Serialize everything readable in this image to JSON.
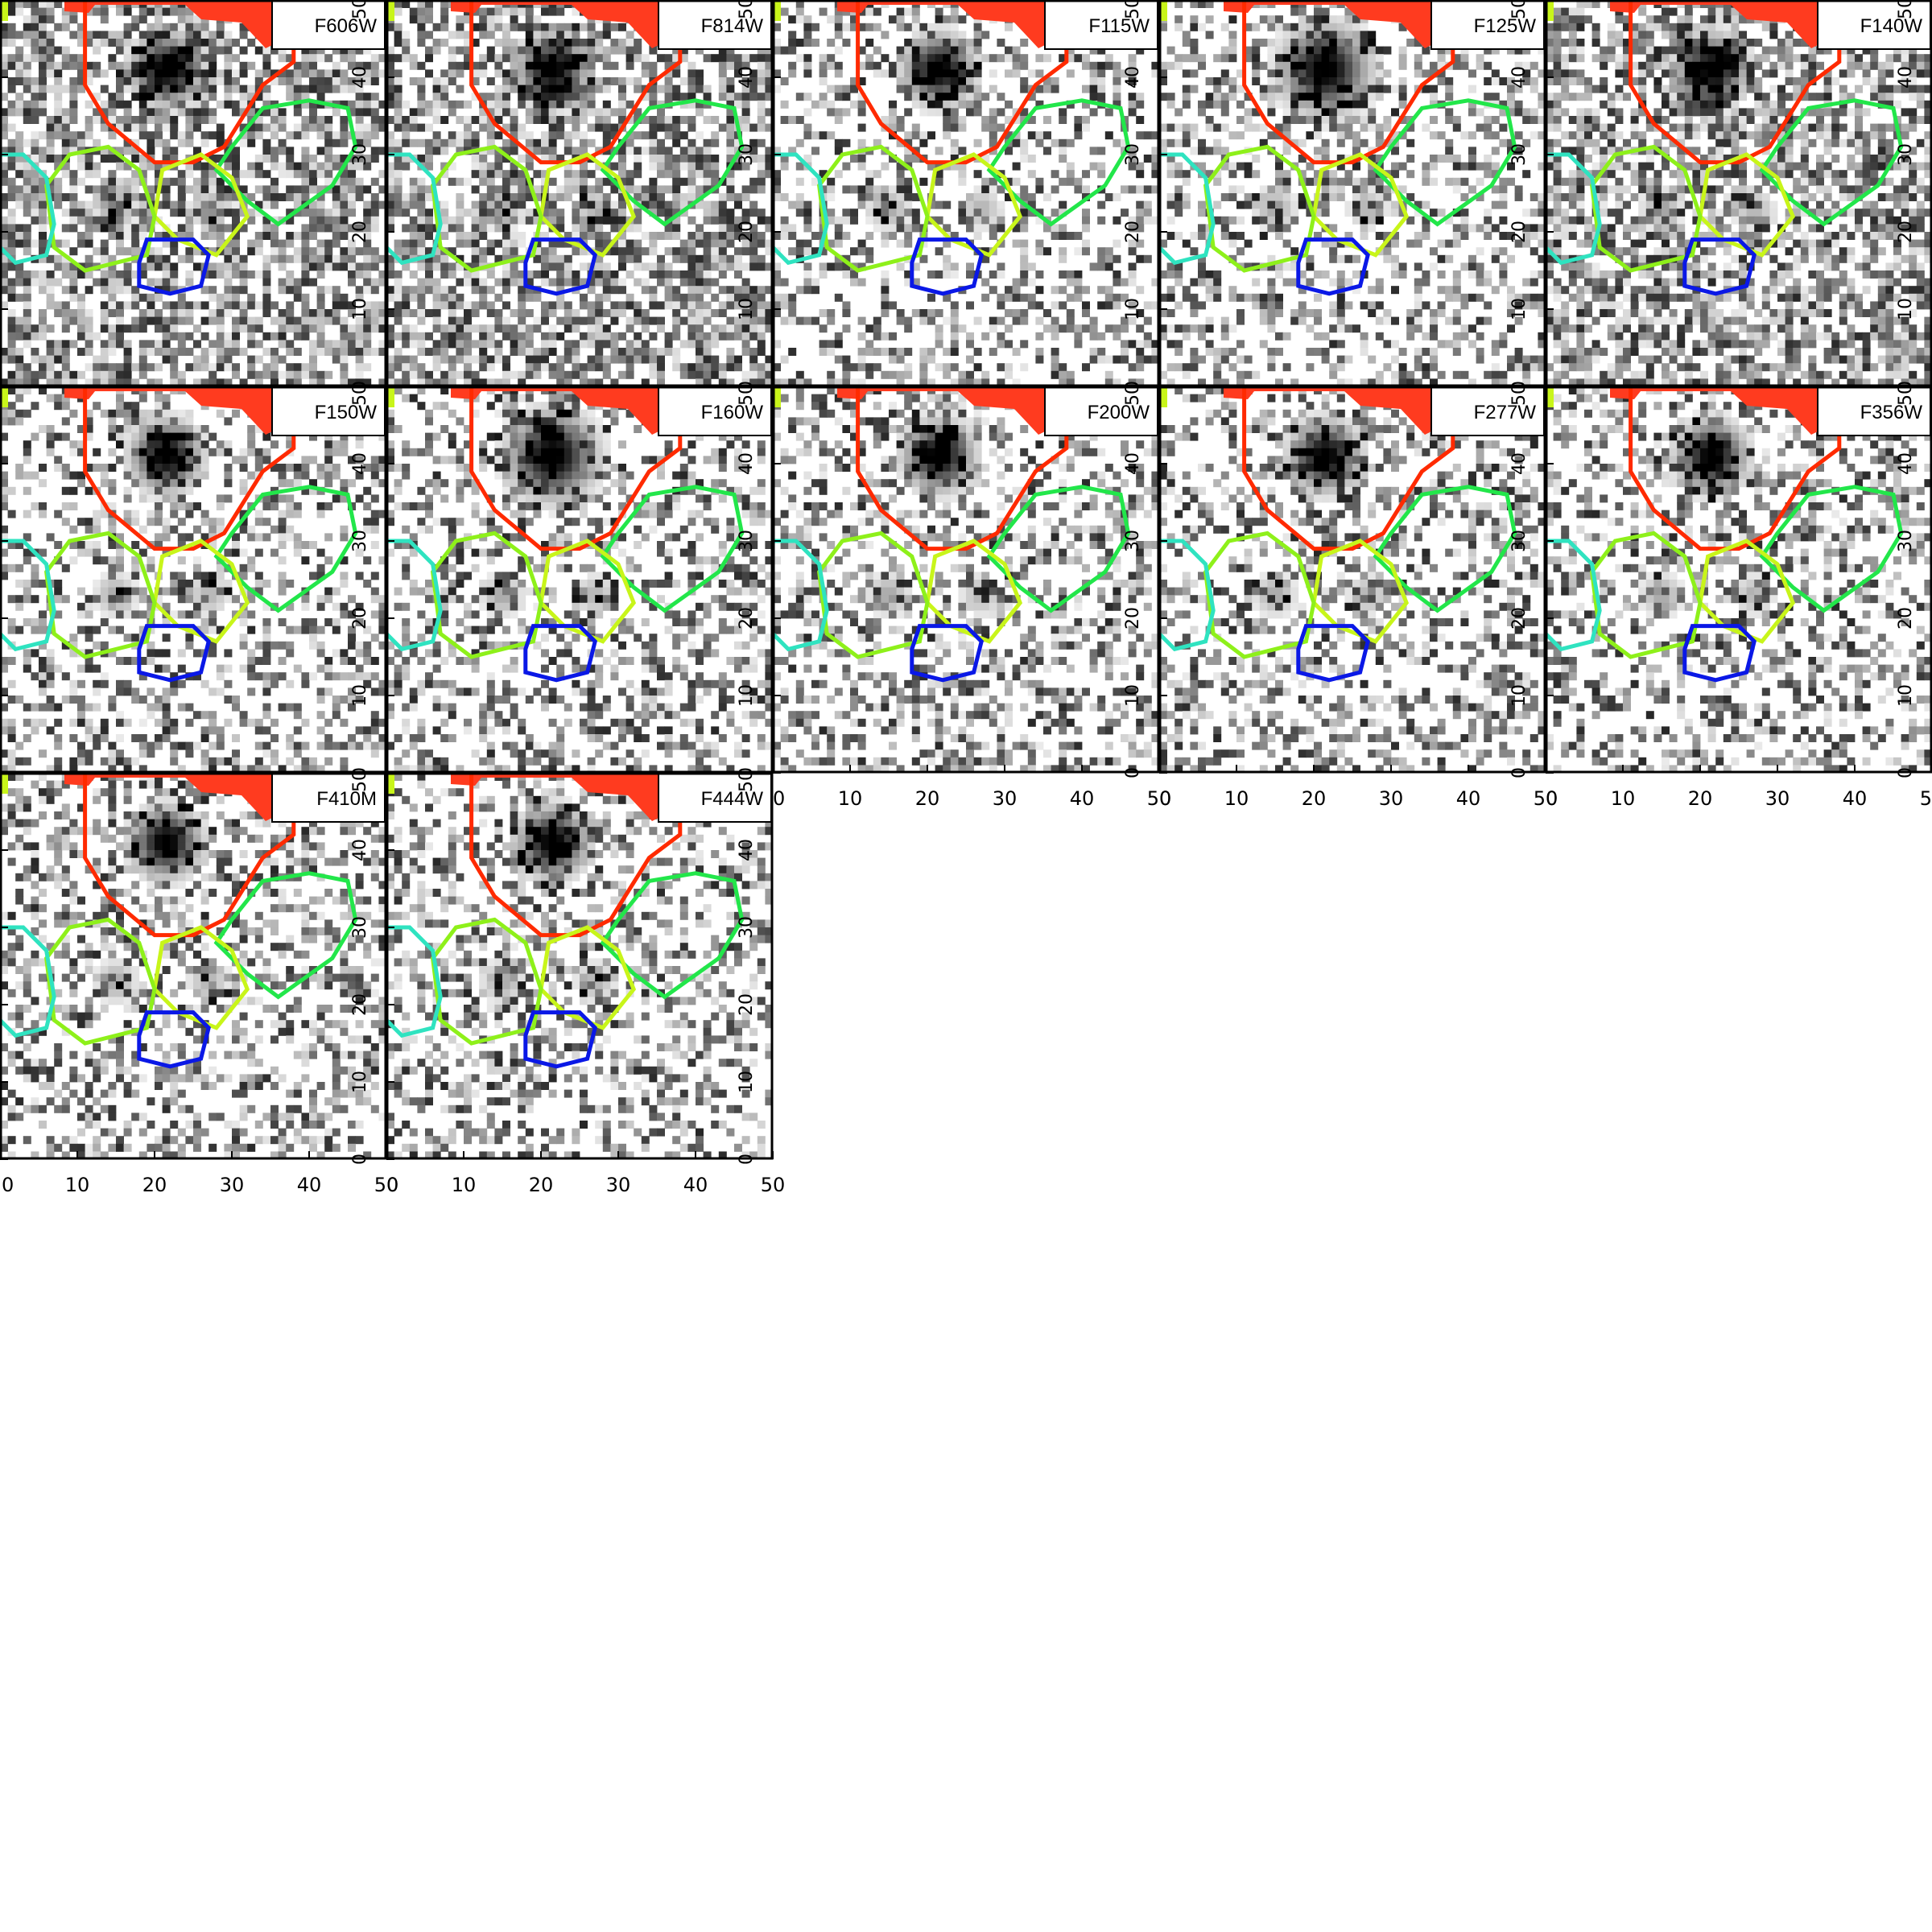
{
  "figure": {
    "axis_ticks": [
      "0",
      "10",
      "20",
      "30",
      "40",
      "50"
    ],
    "panels": [
      {
        "filter": "F606W"
      },
      {
        "filter": "F814W"
      },
      {
        "filter": "F115W"
      },
      {
        "filter": "F125W"
      },
      {
        "filter": "F140W"
      },
      {
        "filter": "F150W"
      },
      {
        "filter": "F160W"
      },
      {
        "filter": "F200W"
      },
      {
        "filter": "F277W"
      },
      {
        "filter": "F356W"
      },
      {
        "filter": "F410M"
      },
      {
        "filter": "F444W"
      }
    ],
    "colors": {
      "region_red": "#ff3b1f",
      "region_orange_red": "#ff2a00",
      "region_green": "#22e64a",
      "region_yellow_green": "#c8f51a",
      "region_lime": "#8ef01a",
      "region_cyan": "#2fe3c0",
      "region_blue": "#0a18e6",
      "frame": "#000000"
    }
  }
}
